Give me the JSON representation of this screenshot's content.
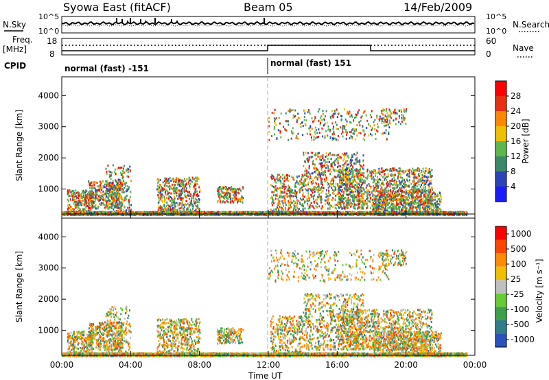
{
  "header": {
    "station": "Syowa East (fitACF)",
    "beam": "Beam 05",
    "date": "14/Feb/2009"
  },
  "panels": {
    "nsky": {
      "left_label": "N.Sky",
      "right_label": "N.Search",
      "left_top_tick": "10^5",
      "left_bottom_tick": "10^0",
      "right_top_tick": "10^5",
      "right_bottom_tick": "10^0"
    },
    "freq": {
      "left_label_line1": "Freq.",
      "left_label_line2": "[MHz]",
      "left_ticks": [
        "18",
        "8"
      ],
      "right_label": "Nave",
      "right_ticks": [
        "60",
        "0"
      ],
      "cpid_label": "CPID"
    },
    "cpid": {
      "segment1": "normal (fast) -151",
      "segment2": "normal (fast) 151"
    }
  },
  "chart_data": [
    {
      "type": "heatmap",
      "name": "power",
      "ylabel": "Slant Range [km]",
      "yticks": [
        "1000",
        "2000",
        "3000",
        "4000"
      ],
      "ylim": [
        200,
        4600
      ],
      "xlim_hours": [
        0,
        24
      ],
      "colorbar_label": "Power [dB]",
      "colorbar_ticks": [
        "4",
        "8",
        "12",
        "16",
        "20",
        "24",
        "28"
      ],
      "colorbar_colors": [
        "#1a1aff",
        "#2a44b8",
        "#3a8a6a",
        "#5cb84a",
        "#f0c000",
        "#ff8800",
        "#e83010",
        "#ff0000"
      ]
    },
    {
      "type": "heatmap",
      "name": "velocity",
      "ylabel": "Slant Range [km]",
      "yticks": [
        "1000",
        "2000",
        "3000",
        "4000"
      ],
      "ylim": [
        200,
        4600
      ],
      "xlim_hours": [
        0,
        24
      ],
      "colorbar_label": "Velocity [m s⁻¹]",
      "colorbar_ticks": [
        "1000",
        "500",
        "100",
        "25",
        "-25",
        "-100",
        "-500",
        "-1000"
      ],
      "colorbar_colors": [
        "#2a52be",
        "#2e7d8a",
        "#3aa04a",
        "#66cc33",
        "#bfbfbf",
        "#f0c000",
        "#ff8c00",
        "#ff4500",
        "#ff0000"
      ]
    }
  ],
  "xaxis": {
    "ticks": [
      "00:00",
      "04:00",
      "08:00",
      "12:00",
      "16:00",
      "20:00",
      "00:00"
    ],
    "label": "Time UT"
  }
}
